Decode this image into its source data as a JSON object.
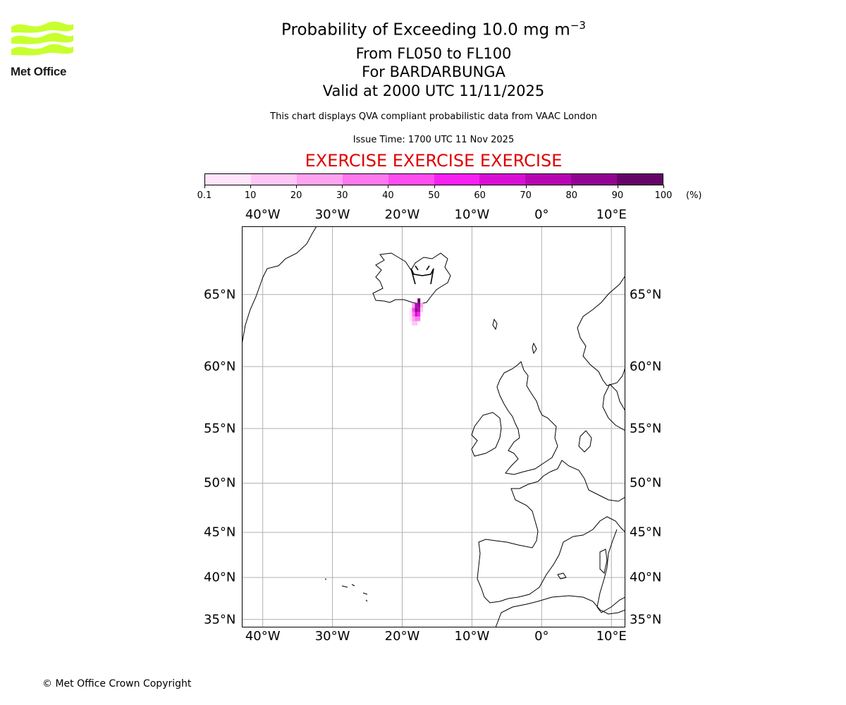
{
  "header": {
    "title_main": "Probability of Exceeding 10.0 mg m",
    "title_sup": "−3",
    "line2": "From FL050 to FL100",
    "line3": "For BARDARBUNGA",
    "line4": "Valid at 2000 UTC 11/11/2025",
    "description": "This chart displays QVA compliant probabilistic data from VAAC London",
    "issue_time": "Issue Time: 1700 UTC 11 Nov 2025",
    "exercise": "EXERCISE EXERCISE EXERCISE"
  },
  "logo": {
    "text": "Met Office",
    "color": "#c8ff2e"
  },
  "colorbar": {
    "ticks": [
      "0.1",
      "10",
      "20",
      "30",
      "40",
      "50",
      "60",
      "70",
      "80",
      "90",
      "100"
    ],
    "unit": "(%)",
    "colors": [
      "#ffe4fb",
      "#ffc6f6",
      "#ffa3f1",
      "#ff78ee",
      "#ff4cf0",
      "#f81ff2",
      "#d90ed4",
      "#b805b2",
      "#910491",
      "#640467"
    ]
  },
  "axes": {
    "lon_labels": [
      "40°W",
      "30°W",
      "20°W",
      "10°W",
      "0°",
      "10°E"
    ],
    "lat_labels": [
      "65°N",
      "60°N",
      "55°N",
      "50°N",
      "45°N",
      "40°N",
      "35°N"
    ]
  },
  "footer": {
    "copyright": "© Met Office Crown Copyright"
  },
  "chart_data": {
    "type": "heatmap",
    "title": "Probability of Exceeding 10.0 mg m−3",
    "subtitle": "From FL050 to FL100, For BARDARBUNGA, Valid at 2000 UTC 11/11/2025",
    "volcano": "BARDARBUNGA",
    "units": "%",
    "color_levels": [
      0.1,
      10,
      20,
      30,
      40,
      50,
      60,
      70,
      80,
      90,
      100
    ],
    "lon_range": [
      -43,
      12
    ],
    "lat_range": [
      34,
      69
    ],
    "lon_ticks": [
      -40,
      -30,
      -20,
      -10,
      0,
      10
    ],
    "lat_ticks": [
      65,
      60,
      55,
      50,
      45,
      40,
      35
    ],
    "grid": true,
    "projection": "mercator",
    "volcano_location": {
      "lon": -17.5,
      "lat": 64.6
    },
    "plume_cells": [
      {
        "lon": -17.6,
        "lat": 64.6,
        "p": 95
      },
      {
        "lon": -17.6,
        "lat": 64.3,
        "p": 88
      },
      {
        "lon": -17.6,
        "lat": 64.0,
        "p": 72
      },
      {
        "lon": -17.6,
        "lat": 63.7,
        "p": 55
      },
      {
        "lon": -18.0,
        "lat": 64.3,
        "p": 70
      },
      {
        "lon": -18.0,
        "lat": 64.0,
        "p": 82
      },
      {
        "lon": -18.0,
        "lat": 63.7,
        "p": 62
      },
      {
        "lon": -18.0,
        "lat": 63.4,
        "p": 35
      },
      {
        "lon": -18.4,
        "lat": 64.3,
        "p": 25
      },
      {
        "lon": -18.4,
        "lat": 64.0,
        "p": 40
      },
      {
        "lon": -18.4,
        "lat": 63.7,
        "p": 30
      },
      {
        "lon": -18.4,
        "lat": 63.4,
        "p": 22
      },
      {
        "lon": -18.4,
        "lat": 63.1,
        "p": 12
      },
      {
        "lon": -18.0,
        "lat": 63.1,
        "p": 18
      },
      {
        "lon": -17.2,
        "lat": 64.3,
        "p": 20
      },
      {
        "lon": -17.2,
        "lat": 64.0,
        "p": 15
      },
      {
        "lon": -18.8,
        "lat": 64.0,
        "p": 8
      },
      {
        "lon": -18.8,
        "lat": 63.7,
        "p": 6
      },
      {
        "lon": -17.6,
        "lat": 63.4,
        "p": 30
      },
      {
        "lon": -18.8,
        "lat": 63.4,
        "p": 5
      }
    ]
  }
}
